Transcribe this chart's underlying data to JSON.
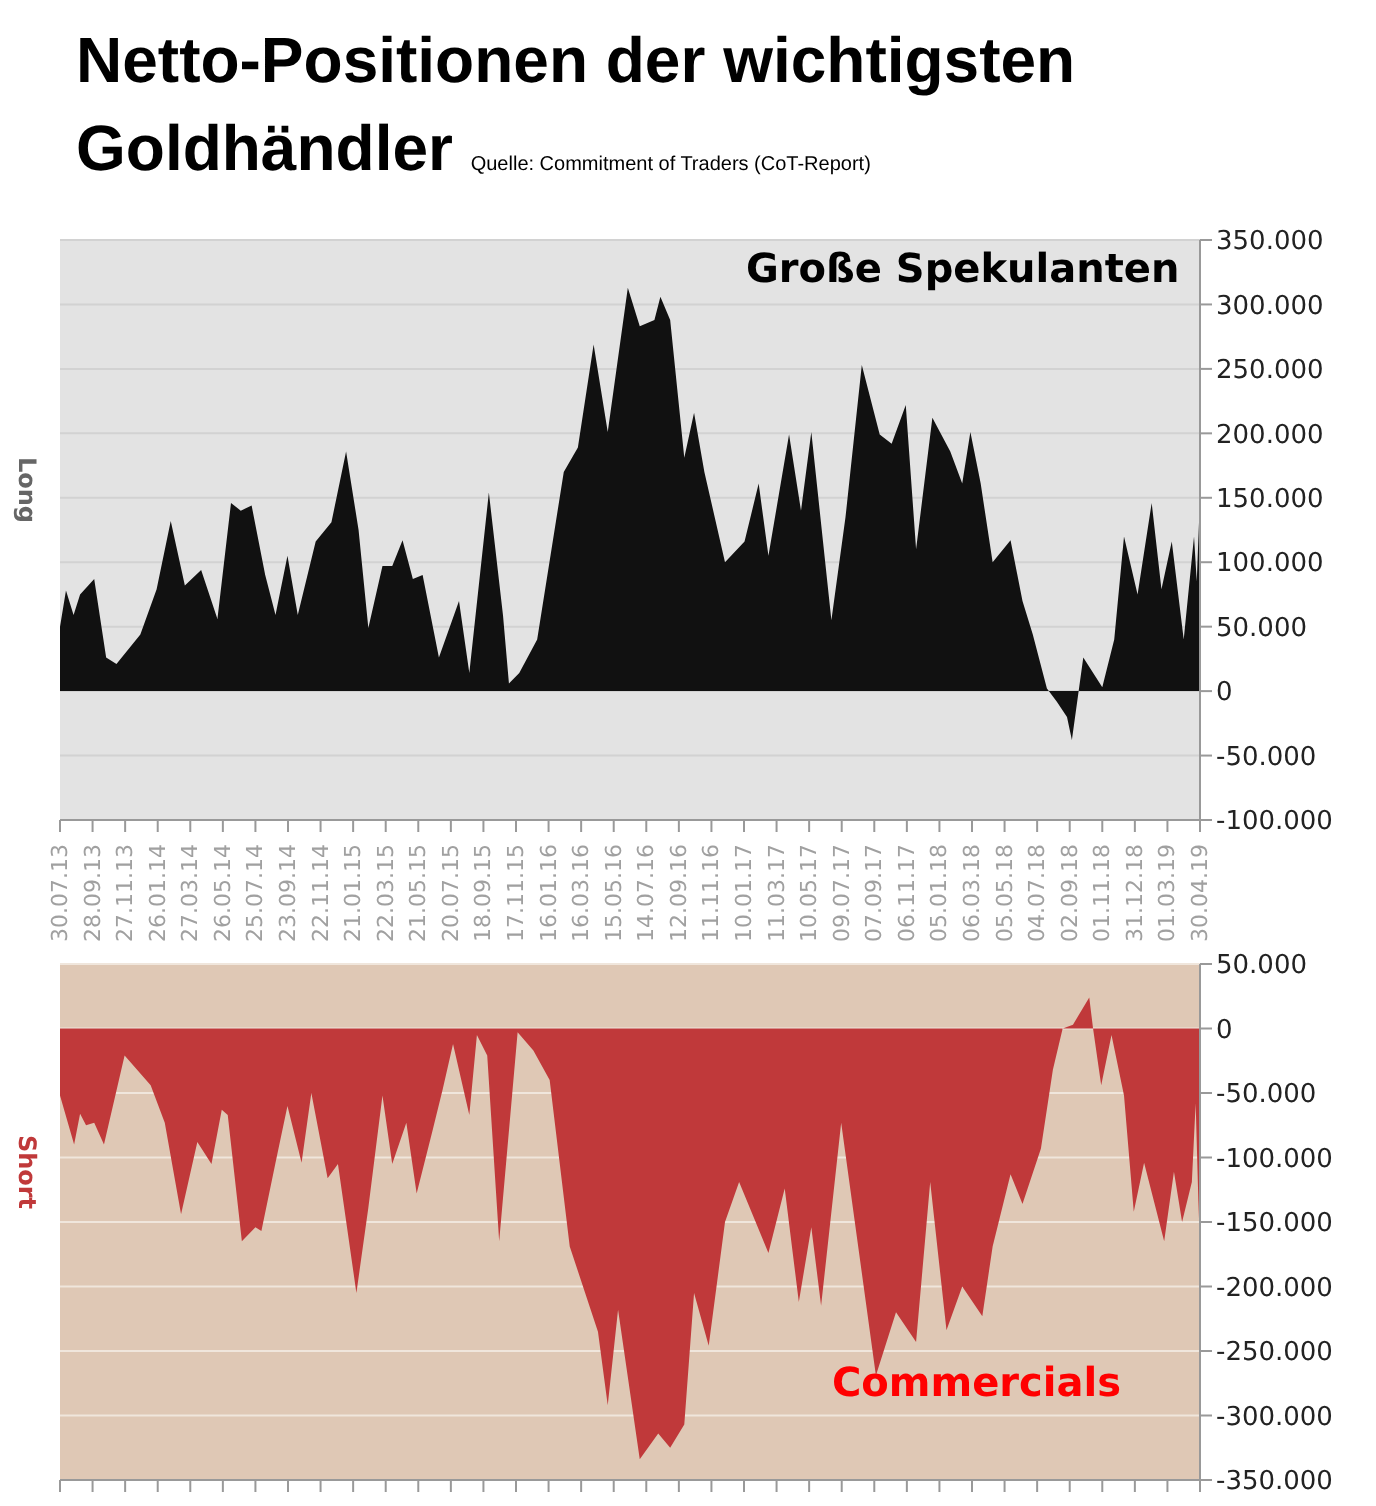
{
  "chart_data": [
    {
      "type": "area",
      "title": "Netto-Positionen der wichtigsten Goldhändler",
      "annotations": [
        "Quelle: Commitment of Traders (CoT-Report)"
      ],
      "ylabel": "Long",
      "grid": "y",
      "x": [
        "2013-07-30",
        "2013-08-10",
        "2013-08-24",
        "2013-09-05",
        "2013-10-01",
        "2013-10-23",
        "2013-11-11",
        "2013-12-25",
        "2014-01-24",
        "2014-02-19",
        "2014-03-17",
        "2014-04-16",
        "2014-05-16",
        "2014-06-10",
        "2014-06-28",
        "2014-07-18",
        "2014-08-12",
        "2014-08-31",
        "2014-09-22",
        "2014-10-11",
        "2014-11-13",
        "2014-12-12",
        "2015-01-08",
        "2015-01-31",
        "2015-02-18",
        "2015-03-16",
        "2015-04-03",
        "2015-04-22",
        "2015-05-11",
        "2015-05-29",
        "2015-06-28",
        "2015-08-04",
        "2015-08-23",
        "2015-09-28",
        "2015-10-24",
        "2015-11-04",
        "2015-11-23",
        "2015-12-26",
        "2016-02-13",
        "2016-03-10",
        "2016-04-08",
        "2016-05-04",
        "2016-06-10",
        "2016-07-02",
        "2016-07-29",
        "2016-08-09",
        "2016-08-27",
        "2016-09-22",
        "2016-10-10",
        "2016-10-29",
        "2016-12-06",
        "2017-01-11",
        "2017-02-06",
        "2017-02-24",
        "2017-04-03",
        "2017-04-25",
        "2017-05-14",
        "2017-06-20",
        "2017-07-16",
        "2017-08-15",
        "2017-09-17",
        "2017-10-09",
        "2017-11-04",
        "2017-11-23",
        "2017-12-23",
        "2018-01-25",
        "2018-02-16",
        "2018-03-03",
        "2018-03-22",
        "2018-04-13",
        "2018-05-16",
        "2018-06-07",
        "2018-06-26",
        "2018-07-22",
        "2018-08-09",
        "2018-08-28",
        "2018-09-06",
        "2018-09-27",
        "2018-11-01",
        "2018-11-23",
        "2018-12-11",
        "2019-01-05",
        "2019-01-31",
        "2019-02-18",
        "2019-03-09",
        "2019-03-31",
        "2019-04-19",
        "2019-04-24",
        "2019-04-30"
      ],
      "series": [
        {
          "name": "Große Spekulanten",
          "color": "#111111",
          "values": [
            50000,
            78000,
            59000,
            75000,
            87000,
            26000,
            21000,
            44000,
            79000,
            132000,
            82000,
            94000,
            56000,
            146000,
            140000,
            144000,
            90000,
            59000,
            105000,
            59000,
            116000,
            131000,
            186000,
            125000,
            49000,
            97000,
            97000,
            117000,
            87000,
            90000,
            26000,
            70000,
            14000,
            154000,
            59000,
            6000,
            14000,
            40000,
            170000,
            189000,
            269000,
            201000,
            313000,
            283000,
            288000,
            306000,
            288000,
            181000,
            216000,
            170000,
            100000,
            116000,
            161000,
            105000,
            199000,
            140000,
            201000,
            55000,
            135000,
            253000,
            199000,
            192000,
            222000,
            110000,
            212000,
            186000,
            161000,
            201000,
            161000,
            100000,
            117000,
            70000,
            44000,
            2000,
            -8000,
            -20000,
            -38000,
            26000,
            3000,
            40000,
            120000,
            75000,
            146000,
            79000,
            116000,
            40000,
            120000,
            85000,
            151000
          ]
        }
      ],
      "xlim": [
        "2013-07-30",
        "2019-04-30"
      ],
      "xticks": [
        {
          "value": "2013-07-30",
          "label": "30.07.13"
        },
        {
          "value": "2013-09-28",
          "label": "28.09.13"
        },
        {
          "value": "2013-11-27",
          "label": "27.11.13"
        },
        {
          "value": "2014-01-26",
          "label": "26.01.14"
        },
        {
          "value": "2014-03-27",
          "label": "27.03.14"
        },
        {
          "value": "2014-05-26",
          "label": "26.05.14"
        },
        {
          "value": "2014-07-25",
          "label": "25.07.14"
        },
        {
          "value": "2014-09-23",
          "label": "23.09.14"
        },
        {
          "value": "2014-11-22",
          "label": "22.11.14"
        },
        {
          "value": "2015-01-21",
          "label": "21.01.15"
        },
        {
          "value": "2015-03-22",
          "label": "22.03.15"
        },
        {
          "value": "2015-05-21",
          "label": "21.05.15"
        },
        {
          "value": "2015-07-20",
          "label": "20.07.15"
        },
        {
          "value": "2015-09-18",
          "label": "18.09.15"
        },
        {
          "value": "2015-11-17",
          "label": "17.11.15"
        },
        {
          "value": "2016-01-16",
          "label": "16.01.16"
        },
        {
          "value": "2016-03-16",
          "label": "16.03.16"
        },
        {
          "value": "2016-05-15",
          "label": "15.05.16"
        },
        {
          "value": "2016-07-14",
          "label": "14.07.16"
        },
        {
          "value": "2016-09-12",
          "label": "12.09.16"
        },
        {
          "value": "2016-11-11",
          "label": "11.11.16"
        },
        {
          "value": "2017-01-10",
          "label": "10.01.17"
        },
        {
          "value": "2017-03-11",
          "label": "11.03.17"
        },
        {
          "value": "2017-05-10",
          "label": "10.05.17"
        },
        {
          "value": "2017-07-09",
          "label": "09.07.17"
        },
        {
          "value": "2017-09-07",
          "label": "07.09.17"
        },
        {
          "value": "2017-11-06",
          "label": "06.11.17"
        },
        {
          "value": "2018-01-05",
          "label": "05.01.18"
        },
        {
          "value": "2018-03-06",
          "label": "06.03.18"
        },
        {
          "value": "2018-05-05",
          "label": "05.05.18"
        },
        {
          "value": "2018-07-04",
          "label": "04.07.18"
        },
        {
          "value": "2018-09-02",
          "label": "02.09.18"
        },
        {
          "value": "2018-11-01",
          "label": "01.11.18"
        },
        {
          "value": "2018-12-31",
          "label": "31.12.18"
        },
        {
          "value": "2019-03-01",
          "label": "01.03.19"
        },
        {
          "value": "2019-04-30",
          "label": "30.04.19"
        }
      ],
      "ylim": [
        -100000,
        350000
      ],
      "yticks": [
        {
          "value": -100000,
          "label": "-100.000"
        },
        {
          "value": -50000,
          "label": "-50.000"
        },
        0,
        {
          "value": 50000,
          "label": "50.000"
        },
        {
          "value": 100000,
          "label": "100.000"
        },
        {
          "value": 150000,
          "label": "150.000"
        },
        {
          "value": 200000,
          "label": "200.000"
        },
        {
          "value": 250000,
          "label": "250.000"
        },
        {
          "value": 300000,
          "label": "300.000"
        },
        {
          "value": 350000,
          "label": "350.000"
        }
      ]
    },
    {
      "type": "area",
      "ylabel": "Short",
      "grid": "y",
      "tick_labels": "y",
      "x": [
        "2013-07-30",
        "2013-08-25",
        "2013-09-05",
        "2013-09-16",
        "2013-10-01",
        "2013-10-19",
        "2013-11-26",
        "2014-01-13",
        "2014-02-08",
        "2014-03-10",
        "2014-04-09",
        "2014-05-05",
        "2014-05-24",
        "2014-06-04",
        "2014-06-30",
        "2014-07-25",
        "2014-08-05",
        "2014-08-31",
        "2014-09-22",
        "2014-10-18",
        "2014-11-05",
        "2014-12-05",
        "2014-12-24",
        "2015-01-27",
        "2015-02-18",
        "2015-03-16",
        "2015-04-03",
        "2015-04-29",
        "2015-05-18",
        "2015-06-17",
        "2015-07-05",
        "2015-07-24",
        "2015-08-23",
        "2015-09-06",
        "2015-09-25",
        "2015-10-17",
        "2015-11-20",
        "2015-12-19",
        "2016-01-18",
        "2016-02-24",
        "2016-04-16",
        "2016-05-04",
        "2016-05-23",
        "2016-07-02",
        "2016-08-05",
        "2016-08-27",
        "2016-09-22",
        "2016-10-10",
        "2016-11-06",
        "2016-12-06",
        "2017-01-01",
        "2017-02-24",
        "2017-03-26",
        "2017-04-21",
        "2017-05-14",
        "2017-06-01",
        "2017-07-08",
        "2017-09-10",
        "2017-10-17",
        "2017-11-23",
        "2017-12-19",
        "2018-01-18",
        "2018-02-16",
        "2018-03-25",
        "2018-04-13",
        "2018-05-16",
        "2018-06-07",
        "2018-07-11",
        "2018-08-02",
        "2018-08-20",
        "2018-09-08",
        "2018-10-08",
        "2018-10-15",
        "2018-10-30",
        "2018-11-18",
        "2018-12-11",
        "2018-12-29",
        "2019-01-17",
        "2019-02-23",
        "2019-03-13",
        "2019-03-28",
        "2019-04-15",
        "2019-04-22",
        "2019-04-27",
        "2019-04-30"
      ],
      "series": [
        {
          "name": "Commercials",
          "color": "#c0393a",
          "values": [
            -52000,
            -90000,
            -66000,
            -75000,
            -73000,
            -90000,
            -21000,
            -44000,
            -73000,
            -144000,
            -88000,
            -105000,
            -63000,
            -67000,
            -165000,
            -154000,
            -157000,
            -104000,
            -60000,
            -104000,
            -50000,
            -116000,
            -105000,
            -205000,
            -139000,
            -52000,
            -105000,
            -73000,
            -128000,
            -78000,
            -47000,
            -12000,
            -67000,
            -5000,
            -21000,
            -165000,
            -3000,
            -17000,
            -40000,
            -169000,
            -235000,
            -292000,
            -218000,
            -334000,
            -314000,
            -325000,
            -307000,
            -205000,
            -246000,
            -150000,
            -119000,
            -174000,
            -124000,
            -212000,
            -154000,
            -215000,
            -73000,
            -269000,
            -220000,
            -243000,
            -119000,
            -234000,
            -200000,
            -223000,
            -169000,
            -113000,
            -136000,
            -93000,
            -32000,
            0,
            3000,
            24000,
            0,
            -44000,
            -5000,
            -52000,
            -142000,
            -104000,
            -165000,
            -111000,
            -150000,
            -119000,
            -58000,
            -134000,
            -169000
          ]
        }
      ],
      "xlim": [
        "2013-07-30",
        "2019-04-30"
      ],
      "xticks": [
        {
          "value": "2013-07-30",
          "label": null
        },
        {
          "value": "2013-09-28",
          "label": null
        },
        {
          "value": "2013-11-27",
          "label": null
        },
        {
          "value": "2014-01-26",
          "label": null
        },
        {
          "value": "2014-03-27",
          "label": null
        },
        {
          "value": "2014-05-26",
          "label": null
        },
        {
          "value": "2014-07-25",
          "label": null
        },
        {
          "value": "2014-09-23",
          "label": null
        },
        {
          "value": "2014-11-22",
          "label": null
        },
        {
          "value": "2015-01-21",
          "label": null
        },
        {
          "value": "2015-03-22",
          "label": null
        },
        {
          "value": "2015-05-21",
          "label": null
        },
        {
          "value": "2015-07-20",
          "label": null
        },
        {
          "value": "2015-09-18",
          "label": null
        },
        {
          "value": "2015-11-17",
          "label": null
        },
        {
          "value": "2016-01-16",
          "label": null
        },
        {
          "value": "2016-03-16",
          "label": null
        },
        {
          "value": "2016-05-15",
          "label": null
        },
        {
          "value": "2016-07-14",
          "label": null
        },
        {
          "value": "2016-09-12",
          "label": null
        },
        {
          "value": "2016-11-11",
          "label": null
        },
        {
          "value": "2017-01-10",
          "label": null
        },
        {
          "value": "2017-03-11",
          "label": null
        },
        {
          "value": "2017-05-10",
          "label": null
        },
        {
          "value": "2017-07-09",
          "label": null
        },
        {
          "value": "2017-09-07",
          "label": null
        },
        {
          "value": "2017-11-06",
          "label": null
        },
        {
          "value": "2018-01-05",
          "label": null
        },
        {
          "value": "2018-03-06",
          "label": null
        },
        {
          "value": "2018-05-05",
          "label": null
        },
        {
          "value": "2018-07-04",
          "label": null
        },
        {
          "value": "2018-09-02",
          "label": null
        },
        {
          "value": "2018-11-01",
          "label": null
        },
        {
          "value": "2018-12-31",
          "label": null
        },
        {
          "value": "2019-03-01",
          "label": null
        },
        {
          "value": "2019-04-30",
          "label": null
        }
      ],
      "ylim": [
        -350000,
        50000
      ],
      "yticks": [
        {
          "value": -350000,
          "label": "-350.000"
        },
        {
          "value": -300000,
          "label": "-300.000"
        },
        {
          "value": -250000,
          "label": "-250.000"
        },
        {
          "value": -200000,
          "label": "-200.000"
        },
        {
          "value": -150000,
          "label": "-150.000"
        },
        {
          "value": -100000,
          "label": "-100.000"
        },
        {
          "value": -50000,
          "label": "-50.000"
        },
        0,
        {
          "value": 50000,
          "label": "50.000"
        }
      ]
    }
  ]
}
